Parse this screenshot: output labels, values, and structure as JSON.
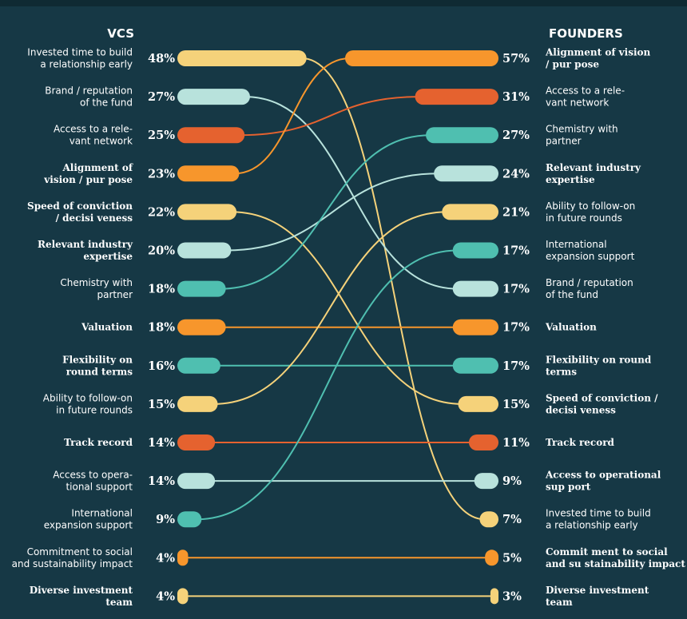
{
  "colors": {
    "background": "#163845",
    "yellow": "#f5d27a",
    "orange": "#f7962c",
    "red_orange": "#e5622f",
    "teal": "#4fbfb0",
    "light_teal": "#b8e2dc"
  },
  "chart_data": {
    "type": "slope",
    "headers": {
      "left": "VCS",
      "right": "FOUNDERS"
    },
    "max_value": 57,
    "vcs": [
      {
        "label": [
          "Invested time to build",
          "a relationship early"
        ],
        "value": 48,
        "value_label": "48%",
        "color": "yellow",
        "font": "sans"
      },
      {
        "label": [
          "Brand / reputation",
          "of the fund"
        ],
        "value": 27,
        "value_label": "27%",
        "color": "light_teal",
        "font": "sans"
      },
      {
        "label": [
          "Access to a rele-",
          "vant network"
        ],
        "value": 25,
        "value_label": "25%",
        "color": "red_orange",
        "font": "sans"
      },
      {
        "label": [
          "Alignment  of",
          "vision / pur pose"
        ],
        "value": 23,
        "value_label": "23%",
        "color": "orange",
        "font": "serif"
      },
      {
        "label": [
          "Speed  of conviction",
          "/ decisi veness"
        ],
        "value": 22,
        "value_label": "22%",
        "color": "yellow",
        "font": "serif"
      },
      {
        "label": [
          "Relevant industry",
          "expertise"
        ],
        "value": 20,
        "value_label": "20%",
        "color": "light_teal",
        "font": "serif"
      },
      {
        "label": [
          "Chemistry with",
          "partner"
        ],
        "value": 18,
        "value_label": "18%",
        "color": "teal",
        "font": "sans"
      },
      {
        "label": [
          "Valuation"
        ],
        "value": 18,
        "value_label": "18%",
        "color": "orange",
        "font": "serif"
      },
      {
        "label": [
          "Flexibility on",
          "round terms"
        ],
        "value": 16,
        "value_label": "16%",
        "color": "teal",
        "font": "serif"
      },
      {
        "label": [
          "Ability to follow-on",
          "in future rounds"
        ],
        "value": 15,
        "value_label": "15%",
        "color": "yellow",
        "font": "sans"
      },
      {
        "label": [
          "Track record"
        ],
        "value": 14,
        "value_label": "14%",
        "color": "red_orange",
        "font": "serif"
      },
      {
        "label": [
          "Access to opera-",
          "tional support"
        ],
        "value": 14,
        "value_label": "14%",
        "color": "light_teal",
        "font": "sans"
      },
      {
        "label": [
          "International",
          "expansion support"
        ],
        "value": 9,
        "value_label": "9%",
        "color": "teal",
        "font": "sans"
      },
      {
        "label": [
          "Commitment to social",
          "and sustainability impact"
        ],
        "value": 4,
        "value_label": "4%",
        "color": "orange",
        "font": "sans"
      },
      {
        "label": [
          "Diverse investment",
          "team"
        ],
        "value": 4,
        "value_label": "4%",
        "color": "yellow",
        "font": "serif"
      }
    ],
    "founders": [
      {
        "label": [
          "Alignment  of vision",
          "/ pur pose"
        ],
        "value": 57,
        "value_label": "57%",
        "color": "orange",
        "font": "serif"
      },
      {
        "label": [
          "Access to a rele-",
          "vant network"
        ],
        "value": 31,
        "value_label": "31%",
        "color": "red_orange",
        "font": "sans"
      },
      {
        "label": [
          "Chemistry with",
          "partner"
        ],
        "value": 27,
        "value_label": "27%",
        "color": "teal",
        "font": "sans"
      },
      {
        "label": [
          "Relevant industry",
          "expertise"
        ],
        "value": 24,
        "value_label": "24%",
        "color": "light_teal",
        "font": "serif"
      },
      {
        "label": [
          "Ability to follow-on",
          "in future rounds"
        ],
        "value": 21,
        "value_label": "21%",
        "color": "yellow",
        "font": "sans"
      },
      {
        "label": [
          "International",
          "expansion support"
        ],
        "value": 17,
        "value_label": "17%",
        "color": "teal",
        "font": "sans"
      },
      {
        "label": [
          "Brand / reputation",
          "of the fund"
        ],
        "value": 17,
        "value_label": "17%",
        "color": "light_teal",
        "font": "sans"
      },
      {
        "label": [
          "Valuation"
        ],
        "value": 17,
        "value_label": "17%",
        "color": "orange",
        "font": "serif"
      },
      {
        "label": [
          "Flexibility on round",
          "terms"
        ],
        "value": 17,
        "value_label": "17%",
        "color": "teal",
        "font": "serif"
      },
      {
        "label": [
          "Speed  of conviction /",
          "decisi veness"
        ],
        "value": 15,
        "value_label": "15%",
        "color": "yellow",
        "font": "serif"
      },
      {
        "label": [
          "Track record"
        ],
        "value": 11,
        "value_label": "11%",
        "color": "red_orange",
        "font": "serif"
      },
      {
        "label": [
          "Access to operational",
          "sup port"
        ],
        "value": 9,
        "value_label": "9%",
        "color": "light_teal",
        "font": "serif"
      },
      {
        "label": [
          "Invested time to build",
          "a relationship early"
        ],
        "value": 7,
        "value_label": "7%",
        "color": "yellow",
        "font": "sans"
      },
      {
        "label": [
          "Commit ment  to social",
          "and su stainability impact"
        ],
        "value": 5,
        "value_label": "5%",
        "color": "orange",
        "font": "serif"
      },
      {
        "label": [
          "Diverse investment",
          "team"
        ],
        "value": 3,
        "value_label": "3%",
        "color": "yellow",
        "font": "serif"
      }
    ],
    "connections": [
      [
        0,
        12
      ],
      [
        1,
        6
      ],
      [
        2,
        1
      ],
      [
        3,
        0
      ],
      [
        4,
        9
      ],
      [
        5,
        3
      ],
      [
        6,
        2
      ],
      [
        7,
        7
      ],
      [
        8,
        8
      ],
      [
        9,
        4
      ],
      [
        10,
        10
      ],
      [
        11,
        11
      ],
      [
        12,
        5
      ],
      [
        13,
        13
      ],
      [
        14,
        14
      ]
    ]
  }
}
